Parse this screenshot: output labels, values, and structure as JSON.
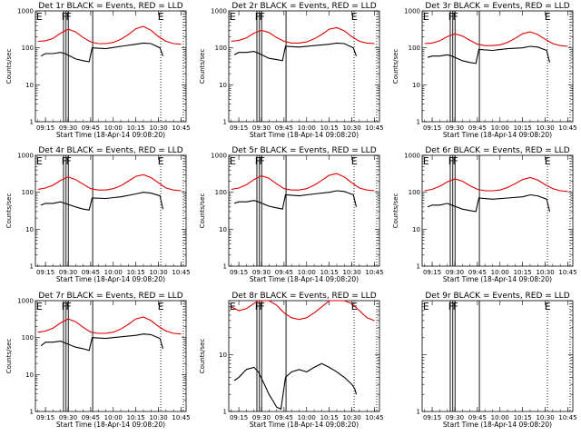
{
  "chart_data": [
    {
      "title": "Det 1r BLACK = Events, RED = LLD",
      "type": "line",
      "xlabel": "Start Time (18-Apr-14 09:08:20)",
      "ylabel": "Counts/sec",
      "xticks": [
        "09:15",
        "09:30",
        "09:45",
        "10:00",
        "10:15",
        "10:30",
        "10:45"
      ],
      "yticks": [
        "1",
        "10",
        "100",
        "1000"
      ],
      "xlim": [
        "09:08:20",
        "10:48:20"
      ],
      "ylim": [
        1,
        1000
      ],
      "yscale": "log",
      "markers": [
        "E",
        "F",
        "F",
        "E"
      ],
      "series": [
        {
          "name": "RED = LLD",
          "color": "#e00000",
          "x": [
            "09:10",
            "09:15",
            "09:20",
            "09:25",
            "09:30",
            "09:35",
            "09:40",
            "09:45",
            "09:50",
            "09:55",
            "10:00",
            "10:05",
            "10:10",
            "10:15",
            "10:20",
            "10:25",
            "10:30",
            "10:35",
            "10:40",
            "10:45"
          ],
          "values": [
            150,
            155,
            180,
            250,
            320,
            270,
            190,
            145,
            130,
            130,
            140,
            170,
            230,
            330,
            380,
            300,
            200,
            150,
            130,
            125
          ]
        },
        {
          "name": "BLACK = Events",
          "color": "#000000",
          "x": [
            "09:12",
            "09:15",
            "09:20",
            "09:25",
            "09:28",
            "09:35",
            "09:40",
            "09:44",
            "09:46",
            "09:55",
            "10:05",
            "10:15",
            "10:20",
            "10:25",
            "10:31",
            "10:33"
          ],
          "values": [
            60,
            70,
            70,
            75,
            70,
            50,
            45,
            42,
            100,
            95,
            110,
            125,
            135,
            130,
            100,
            60
          ]
        }
      ]
    },
    {
      "title": "Det 2r BLACK = Events, RED = LLD",
      "type": "line",
      "xlabel": "Start Time (18-Apr-14 09:08:20)",
      "ylabel": "Counts/sec",
      "xticks": [
        "09:15",
        "09:30",
        "09:45",
        "10:00",
        "10:15",
        "10:30",
        "10:45"
      ],
      "yticks": [
        "1",
        "10",
        "100",
        "1000"
      ],
      "xlim": [
        "09:08:20",
        "10:48:20"
      ],
      "ylim": [
        1,
        1000
      ],
      "yscale": "log",
      "markers": [
        "E",
        "F",
        "F",
        "E"
      ],
      "series": [
        {
          "name": "RED = LLD",
          "color": "#e00000",
          "x": [
            "09:10",
            "09:15",
            "09:20",
            "09:25",
            "09:30",
            "09:35",
            "09:40",
            "09:45",
            "09:50",
            "09:55",
            "10:00",
            "10:05",
            "10:10",
            "10:15",
            "10:20",
            "10:25",
            "10:30",
            "10:35",
            "10:40",
            "10:45"
          ],
          "values": [
            150,
            160,
            185,
            250,
            300,
            260,
            190,
            150,
            135,
            135,
            145,
            175,
            230,
            320,
            350,
            290,
            200,
            150,
            135,
            130
          ]
        },
        {
          "name": "BLACK = Events",
          "color": "#000000",
          "x": [
            "09:12",
            "09:15",
            "09:20",
            "09:25",
            "09:28",
            "09:35",
            "09:40",
            "09:44",
            "09:46",
            "09:55",
            "10:05",
            "10:15",
            "10:20",
            "10:25",
            "10:31",
            "10:33"
          ],
          "values": [
            65,
            75,
            75,
            80,
            72,
            52,
            48,
            45,
            110,
            105,
            115,
            125,
            135,
            130,
            100,
            60
          ]
        }
      ]
    },
    {
      "title": "Det 3r BLACK = Events, RED = LLD",
      "type": "line",
      "xlabel": "Start Time (18-Apr-14 09:08:20)",
      "ylabel": "Counts/sec",
      "xticks": [
        "09:15",
        "09:30",
        "09:45",
        "10:00",
        "10:15",
        "10:30",
        "10:45"
      ],
      "yticks": [
        "1",
        "10",
        "100",
        "1000"
      ],
      "xlim": [
        "09:08:20",
        "10:48:20"
      ],
      "ylim": [
        1,
        1000
      ],
      "yscale": "log",
      "markers": [
        "E",
        "F",
        "F",
        "E"
      ],
      "series": [
        {
          "name": "RED = LLD",
          "color": "#e00000",
          "x": [
            "09:10",
            "09:15",
            "09:20",
            "09:25",
            "09:30",
            "09:35",
            "09:40",
            "09:45",
            "09:50",
            "09:55",
            "10:00",
            "10:05",
            "10:10",
            "10:15",
            "10:20",
            "10:25",
            "10:30",
            "10:35",
            "10:40",
            "10:45"
          ],
          "values": [
            130,
            135,
            155,
            200,
            240,
            210,
            160,
            125,
            115,
            115,
            120,
            140,
            180,
            240,
            270,
            230,
            170,
            130,
            115,
            110
          ]
        },
        {
          "name": "BLACK = Events",
          "color": "#000000",
          "x": [
            "09:12",
            "09:15",
            "09:20",
            "09:25",
            "09:28",
            "09:35",
            "09:40",
            "09:44",
            "09:46",
            "09:55",
            "10:05",
            "10:15",
            "10:20",
            "10:25",
            "10:31",
            "10:33"
          ],
          "values": [
            55,
            60,
            60,
            65,
            60,
            45,
            40,
            38,
            90,
            85,
            95,
            100,
            110,
            105,
            85,
            40
          ]
        }
      ]
    },
    {
      "title": "Det 4r BLACK = Events, RED = LLD",
      "type": "line",
      "xlabel": "Start Time (18-Apr-14 09:08:20)",
      "ylabel": "Counts/sec",
      "xticks": [
        "09:15",
        "09:30",
        "09:45",
        "10:00",
        "10:15",
        "10:30",
        "10:45"
      ],
      "yticks": [
        "1",
        "10",
        "100",
        "1000"
      ],
      "xlim": [
        "09:08:20",
        "10:48:20"
      ],
      "ylim": [
        1,
        1000
      ],
      "yscale": "log",
      "markers": [
        "E",
        "F",
        "F",
        "E"
      ],
      "series": [
        {
          "name": "RED = LLD",
          "color": "#e00000",
          "x": [
            "09:10",
            "09:15",
            "09:20",
            "09:25",
            "09:30",
            "09:35",
            "09:40",
            "09:45",
            "09:50",
            "09:55",
            "10:00",
            "10:05",
            "10:10",
            "10:15",
            "10:20",
            "10:25",
            "10:30",
            "10:35",
            "10:40",
            "10:45"
          ],
          "values": [
            120,
            130,
            155,
            210,
            260,
            220,
            165,
            125,
            115,
            115,
            125,
            150,
            200,
            270,
            300,
            250,
            180,
            130,
            115,
            110
          ]
        },
        {
          "name": "BLACK = Events",
          "color": "#000000",
          "x": [
            "09:12",
            "09:15",
            "09:20",
            "09:25",
            "09:28",
            "09:35",
            "09:40",
            "09:44",
            "09:46",
            "09:55",
            "10:05",
            "10:15",
            "10:20",
            "10:25",
            "10:31",
            "10:33"
          ],
          "values": [
            45,
            50,
            50,
            55,
            50,
            40,
            35,
            33,
            70,
            68,
            75,
            90,
            100,
            95,
            80,
            35
          ]
        }
      ]
    },
    {
      "title": "Det 5r BLACK = Events, RED = LLD",
      "type": "line",
      "xlabel": "Start Time (18-Apr-14 09:08:20)",
      "ylabel": "Counts/sec",
      "xticks": [
        "09:15",
        "09:30",
        "09:45",
        "10:00",
        "10:15",
        "10:30",
        "10:45"
      ],
      "yticks": [
        "1",
        "10",
        "100",
        "1000"
      ],
      "xlim": [
        "09:08:20",
        "10:48:20"
      ],
      "ylim": [
        1,
        1000
      ],
      "yscale": "log",
      "markers": [
        "E",
        "F",
        "F",
        "E"
      ],
      "series": [
        {
          "name": "RED = LLD",
          "color": "#e00000",
          "x": [
            "09:10",
            "09:15",
            "09:20",
            "09:25",
            "09:30",
            "09:35",
            "09:40",
            "09:45",
            "09:50",
            "09:55",
            "10:00",
            "10:05",
            "10:10",
            "10:15",
            "10:20",
            "10:25",
            "10:30",
            "10:35",
            "10:40",
            "10:45"
          ],
          "values": [
            120,
            130,
            160,
            220,
            280,
            240,
            170,
            125,
            115,
            115,
            125,
            155,
            210,
            290,
            320,
            260,
            180,
            130,
            115,
            110
          ]
        },
        {
          "name": "BLACK = Events",
          "color": "#000000",
          "x": [
            "09:12",
            "09:15",
            "09:20",
            "09:25",
            "09:28",
            "09:35",
            "09:40",
            "09:44",
            "09:46",
            "09:55",
            "10:05",
            "10:15",
            "10:20",
            "10:25",
            "10:31",
            "10:33"
          ],
          "values": [
            50,
            55,
            55,
            60,
            55,
            42,
            38,
            35,
            85,
            80,
            90,
            100,
            110,
            105,
            85,
            40
          ]
        }
      ]
    },
    {
      "title": "Det 6r BLACK = Events, RED = LLD",
      "type": "line",
      "xlabel": "Start Time (18-Apr-14 09:08:20)",
      "ylabel": "Counts/sec",
      "xticks": [
        "09:15",
        "09:30",
        "09:45",
        "10:00",
        "10:15",
        "10:30",
        "10:45"
      ],
      "yticks": [
        "1",
        "10",
        "100",
        "1000"
      ],
      "xlim": [
        "09:08:20",
        "10:48:20"
      ],
      "ylim": [
        1,
        1000
      ],
      "yscale": "log",
      "markers": [
        "E",
        "F",
        "F",
        "E"
      ],
      "series": [
        {
          "name": "RED = LLD",
          "color": "#e00000",
          "x": [
            "09:10",
            "09:15",
            "09:20",
            "09:25",
            "09:30",
            "09:35",
            "09:40",
            "09:45",
            "09:50",
            "09:55",
            "10:00",
            "10:05",
            "10:10",
            "10:15",
            "10:20",
            "10:25",
            "10:30",
            "10:35",
            "10:40",
            "10:45"
          ],
          "values": [
            110,
            120,
            145,
            190,
            230,
            200,
            150,
            120,
            110,
            110,
            115,
            135,
            170,
            220,
            250,
            215,
            160,
            125,
            110,
            105
          ]
        },
        {
          "name": "BLACK = Events",
          "color": "#000000",
          "x": [
            "09:12",
            "09:15",
            "09:20",
            "09:25",
            "09:28",
            "09:35",
            "09:40",
            "09:44",
            "09:46",
            "09:55",
            "10:05",
            "10:15",
            "10:20",
            "10:25",
            "10:31",
            "10:33"
          ],
          "values": [
            40,
            45,
            45,
            50,
            45,
            35,
            32,
            30,
            70,
            65,
            70,
            75,
            85,
            80,
            65,
            30
          ]
        }
      ]
    },
    {
      "title": "Det 7r BLACK = Events, RED = LLD",
      "type": "line",
      "xlabel": "Start Time (18-Apr-14 09:08:20)",
      "ylabel": "Counts/sec",
      "xticks": [
        "09:15",
        "09:30",
        "09:45",
        "10:00",
        "10:15",
        "10:30",
        "10:45"
      ],
      "yticks": [
        "1",
        "10",
        "100",
        "1000"
      ],
      "xlim": [
        "09:08:20",
        "10:48:20"
      ],
      "ylim": [
        1,
        1000
      ],
      "yscale": "log",
      "markers": [
        "E",
        "F",
        "F",
        "E"
      ],
      "series": [
        {
          "name": "RED = LLD",
          "color": "#e00000",
          "x": [
            "09:10",
            "09:15",
            "09:20",
            "09:25",
            "09:30",
            "09:35",
            "09:40",
            "09:45",
            "09:50",
            "09:55",
            "10:00",
            "10:05",
            "10:10",
            "10:15",
            "10:20",
            "10:25",
            "10:30",
            "10:35",
            "10:40",
            "10:45"
          ],
          "values": [
            140,
            150,
            180,
            250,
            320,
            270,
            190,
            140,
            130,
            130,
            140,
            170,
            230,
            320,
            360,
            290,
            200,
            150,
            130,
            125
          ]
        },
        {
          "name": "BLACK = Events",
          "color": "#000000",
          "x": [
            "09:12",
            "09:15",
            "09:20",
            "09:25",
            "09:28",
            "09:35",
            "09:40",
            "09:44",
            "09:46",
            "09:55",
            "10:05",
            "10:15",
            "10:20",
            "10:25",
            "10:31",
            "10:33"
          ],
          "values": [
            60,
            75,
            75,
            80,
            72,
            55,
            50,
            45,
            100,
            95,
            105,
            115,
            125,
            120,
            95,
            50
          ]
        }
      ]
    },
    {
      "title": "Det 8r BLACK = Events, RED = LLD",
      "type": "line",
      "xlabel": "Start Time (18-Apr-14 09:08:20)",
      "ylabel": "Counts/sec",
      "xticks": [
        "09:15",
        "09:30",
        "09:45",
        "10:00",
        "10:15",
        "10:30",
        "10:45"
      ],
      "yticks": [
        "1",
        "10"
      ],
      "xlim": [
        "09:08:20",
        "10:48:20"
      ],
      "ylim": [
        1,
        90
      ],
      "yscale": "log",
      "markers": [
        "E",
        "F",
        "F",
        "E"
      ],
      "series": [
        {
          "name": "RED = LLD",
          "color": "#e00000",
          "x": [
            "09:10",
            "09:15",
            "09:20",
            "09:25",
            "09:28",
            "09:30",
            "09:35",
            "09:40",
            "09:45",
            "09:50",
            "09:55",
            "10:00",
            "10:05",
            "10:10",
            "10:15",
            "10:20",
            "10:25",
            "10:30",
            "10:35",
            "10:40",
            "10:45"
          ],
          "values": [
            70,
            60,
            65,
            80,
            95,
            100,
            95,
            75,
            55,
            45,
            42,
            45,
            55,
            70,
            95,
            100,
            100,
            80,
            60,
            45,
            40
          ]
        },
        {
          "name": "BLACK = Events",
          "color": "#000000",
          "x": [
            "09:12",
            "09:15",
            "09:20",
            "09:25",
            "09:28",
            "09:32",
            "09:35",
            "09:38",
            "09:40",
            "09:43",
            "09:46",
            "09:50",
            "09:55",
            "10:00",
            "10:05",
            "10:10",
            "10:15",
            "10:20",
            "10:25",
            "10:30",
            "10:32",
            "10:33"
          ],
          "values": [
            3.5,
            4,
            5.5,
            6,
            5,
            3,
            2,
            1.5,
            1.2,
            1.1,
            4,
            5,
            5.5,
            5,
            6,
            7,
            6,
            5,
            4,
            3,
            2.5,
            2
          ]
        }
      ]
    },
    {
      "title": "Det 9r BLACK = Events, RED = LLD",
      "type": "line",
      "xlabel": "Start Time (18-Apr-14 09:08:20)",
      "ylabel": "",
      "xticks": [
        "09:15",
        "09:30",
        "09:45",
        "10:00",
        "10:15",
        "10:30",
        "10:45"
      ],
      "yticks": [
        "1"
      ],
      "xlim": [
        "09:08:20",
        "10:48:20"
      ],
      "ylim": [
        1,
        90
      ],
      "yscale": "log",
      "markers": [
        "E",
        "F",
        "F",
        "E"
      ],
      "series": []
    }
  ]
}
